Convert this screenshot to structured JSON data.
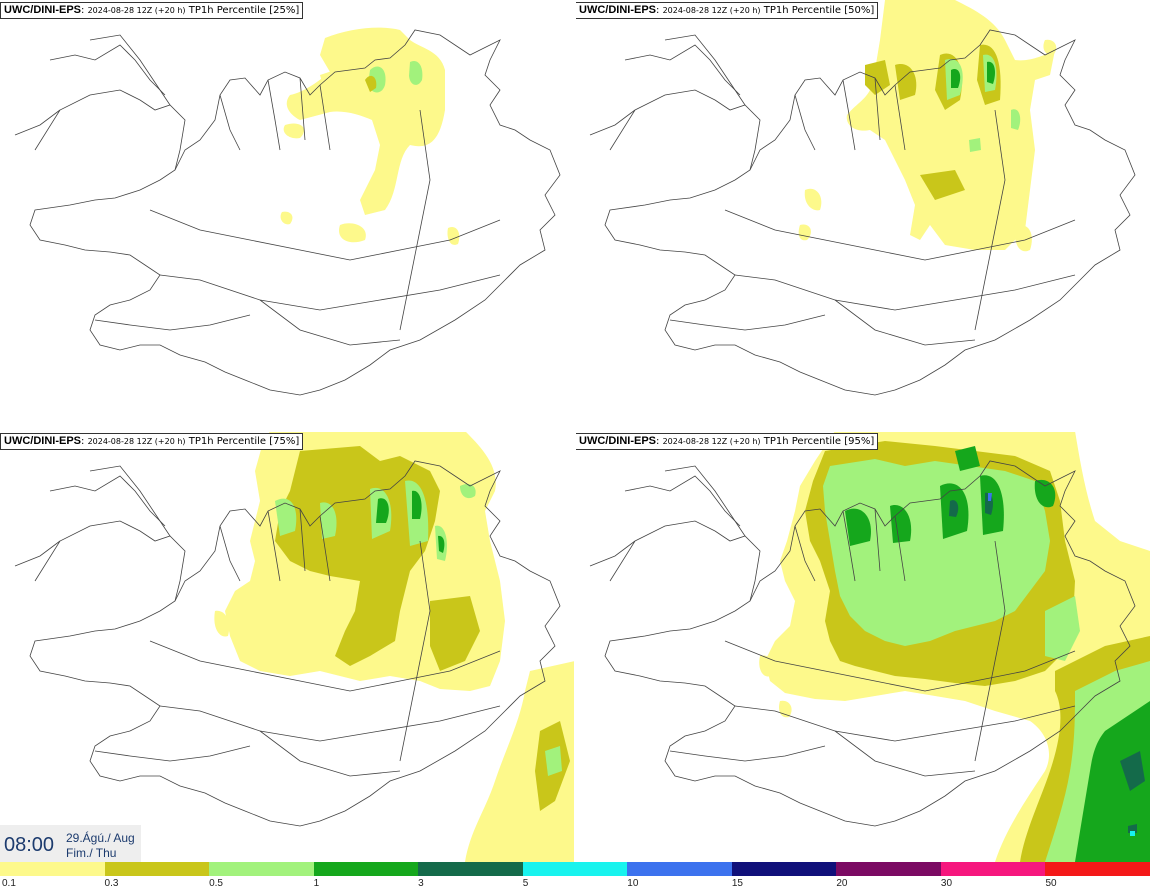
{
  "panels": [
    {
      "model": "UWC/DINI-EPS",
      "init": "2024-08-28 12Z (+20 h)",
      "variable": "TP1h Percentile [25%]",
      "percentile": 25
    },
    {
      "model": "UWC/DINI-EPS",
      "init": "2024-08-28 12Z (+20 h)",
      "variable": "TP1h Percentile [50%]",
      "percentile": 50
    },
    {
      "model": "UWC/DINI-EPS",
      "init": "2024-08-28 12Z (+20 h)",
      "variable": "TP1h Percentile [75%]",
      "percentile": 75
    },
    {
      "model": "UWC/DINI-EPS",
      "init": "2024-08-28 12Z (+20 h)",
      "variable": "TP1h Percentile [95%]",
      "percentile": 95
    }
  ],
  "sep": ": ",
  "time": {
    "clock": "08:00",
    "date_line1": "29.Ágú./ Aug",
    "date_line2": "Fim./ Thu"
  },
  "legend": {
    "levels": [
      "0.1",
      "0.3",
      "0.5",
      "1",
      "3",
      "5",
      "10",
      "15",
      "20",
      "30",
      "50"
    ],
    "colors": [
      "#fdf98b",
      "#c9c61a",
      "#a2f27c",
      "#15a71c",
      "#146a4a",
      "#18f3ee",
      "#3c72ee",
      "#10107a",
      "#7b0a63",
      "#f6177e",
      "#f41818"
    ]
  }
}
